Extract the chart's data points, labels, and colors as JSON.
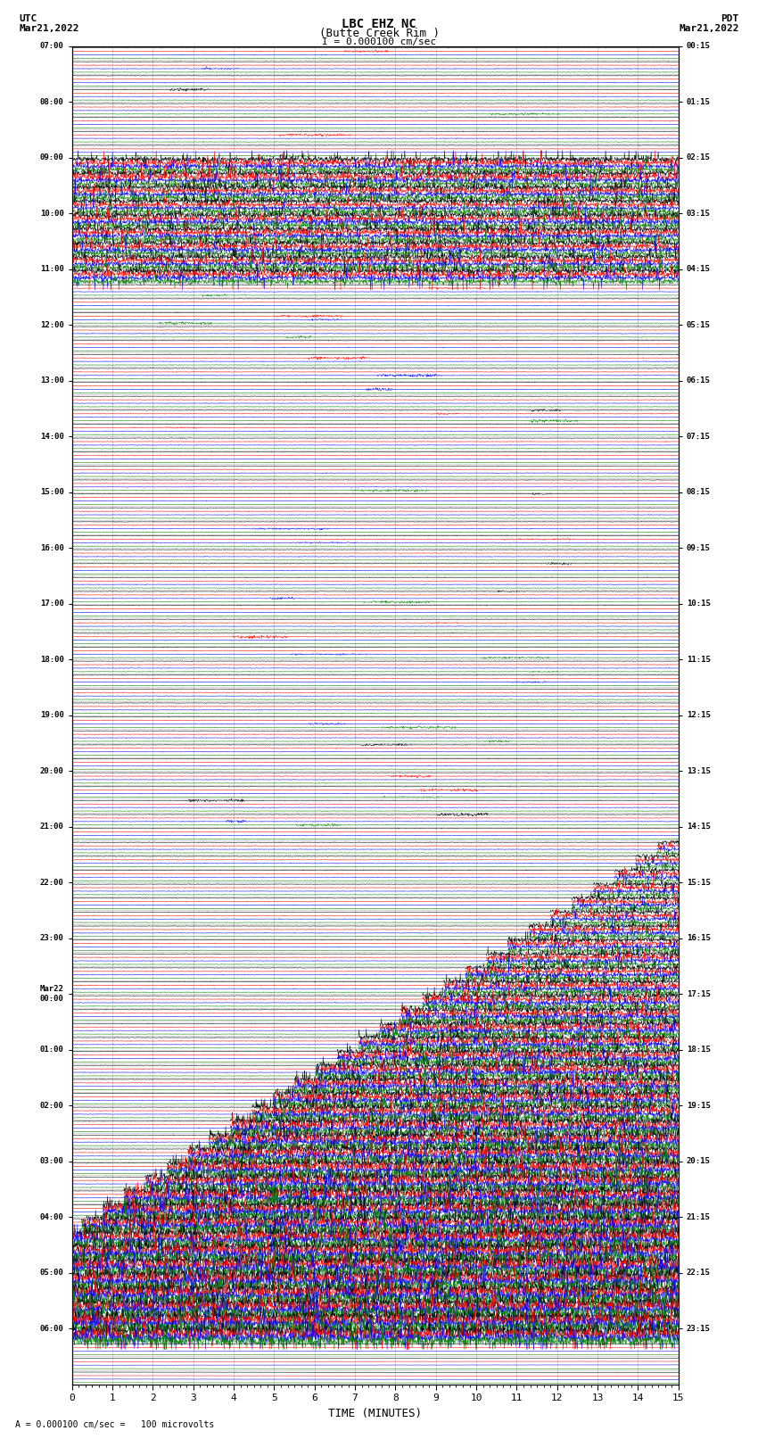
{
  "title_line1": "LBC EHZ NC",
  "title_line2": "(Butte Creek Rim )",
  "scale_label": "I = 0.000100 cm/sec",
  "left_label_top": "UTC",
  "left_label_date": "Mar21,2022",
  "right_label_top": "PDT",
  "right_label_date": "Mar21,2022",
  "bottom_label": "TIME (MINUTES)",
  "footer_label": "A = 0.000100 cm/sec =   100 microvolts",
  "x_ticks": [
    0,
    1,
    2,
    3,
    4,
    5,
    6,
    7,
    8,
    9,
    10,
    11,
    12,
    13,
    14,
    15
  ],
  "x_lim": [
    0,
    15
  ],
  "bg_color": "#ffffff",
  "line_colors": [
    "black",
    "red",
    "blue",
    "green"
  ],
  "left_times_utc": [
    "07:00",
    "",
    "",
    "",
    "08:00",
    "",
    "",
    "",
    "09:00",
    "",
    "",
    "",
    "10:00",
    "",
    "",
    "",
    "11:00",
    "",
    "",
    "",
    "12:00",
    "",
    "",
    "",
    "13:00",
    "",
    "",
    "",
    "14:00",
    "",
    "",
    "",
    "15:00",
    "",
    "",
    "",
    "16:00",
    "",
    "",
    "",
    "17:00",
    "",
    "",
    "",
    "18:00",
    "",
    "",
    "",
    "19:00",
    "",
    "",
    "",
    "20:00",
    "",
    "",
    "",
    "21:00",
    "",
    "",
    "",
    "22:00",
    "",
    "",
    "",
    "23:00",
    "",
    "",
    "",
    "Mar22\n00:00",
    "",
    "",
    "",
    "01:00",
    "",
    "",
    "",
    "02:00",
    "",
    "",
    "",
    "03:00",
    "",
    "",
    "",
    "04:00",
    "",
    "",
    "",
    "05:00",
    "",
    "",
    "",
    "06:00",
    "",
    "",
    ""
  ],
  "right_times_pdt": [
    "00:15",
    "",
    "",
    "",
    "01:15",
    "",
    "",
    "",
    "02:15",
    "",
    "",
    "",
    "03:15",
    "",
    "",
    "",
    "04:15",
    "",
    "",
    "",
    "05:15",
    "",
    "",
    "",
    "06:15",
    "",
    "",
    "",
    "07:15",
    "",
    "",
    "",
    "08:15",
    "",
    "",
    "",
    "09:15",
    "",
    "",
    "",
    "10:15",
    "",
    "",
    "",
    "11:15",
    "",
    "",
    "",
    "12:15",
    "",
    "",
    "",
    "13:15",
    "",
    "",
    "",
    "14:15",
    "",
    "",
    "",
    "15:15",
    "",
    "",
    "",
    "16:15",
    "",
    "",
    "",
    "17:15",
    "",
    "",
    "",
    "18:15",
    "",
    "",
    "",
    "19:15",
    "",
    "",
    "",
    "20:15",
    "",
    "",
    "",
    "21:15",
    "",
    "",
    "",
    "22:15",
    "",
    "",
    "",
    "23:15",
    "",
    "",
    ""
  ],
  "n_rows": 96,
  "noise_seed": 42,
  "grid_color": "#888888",
  "grid_lw": 0.4
}
